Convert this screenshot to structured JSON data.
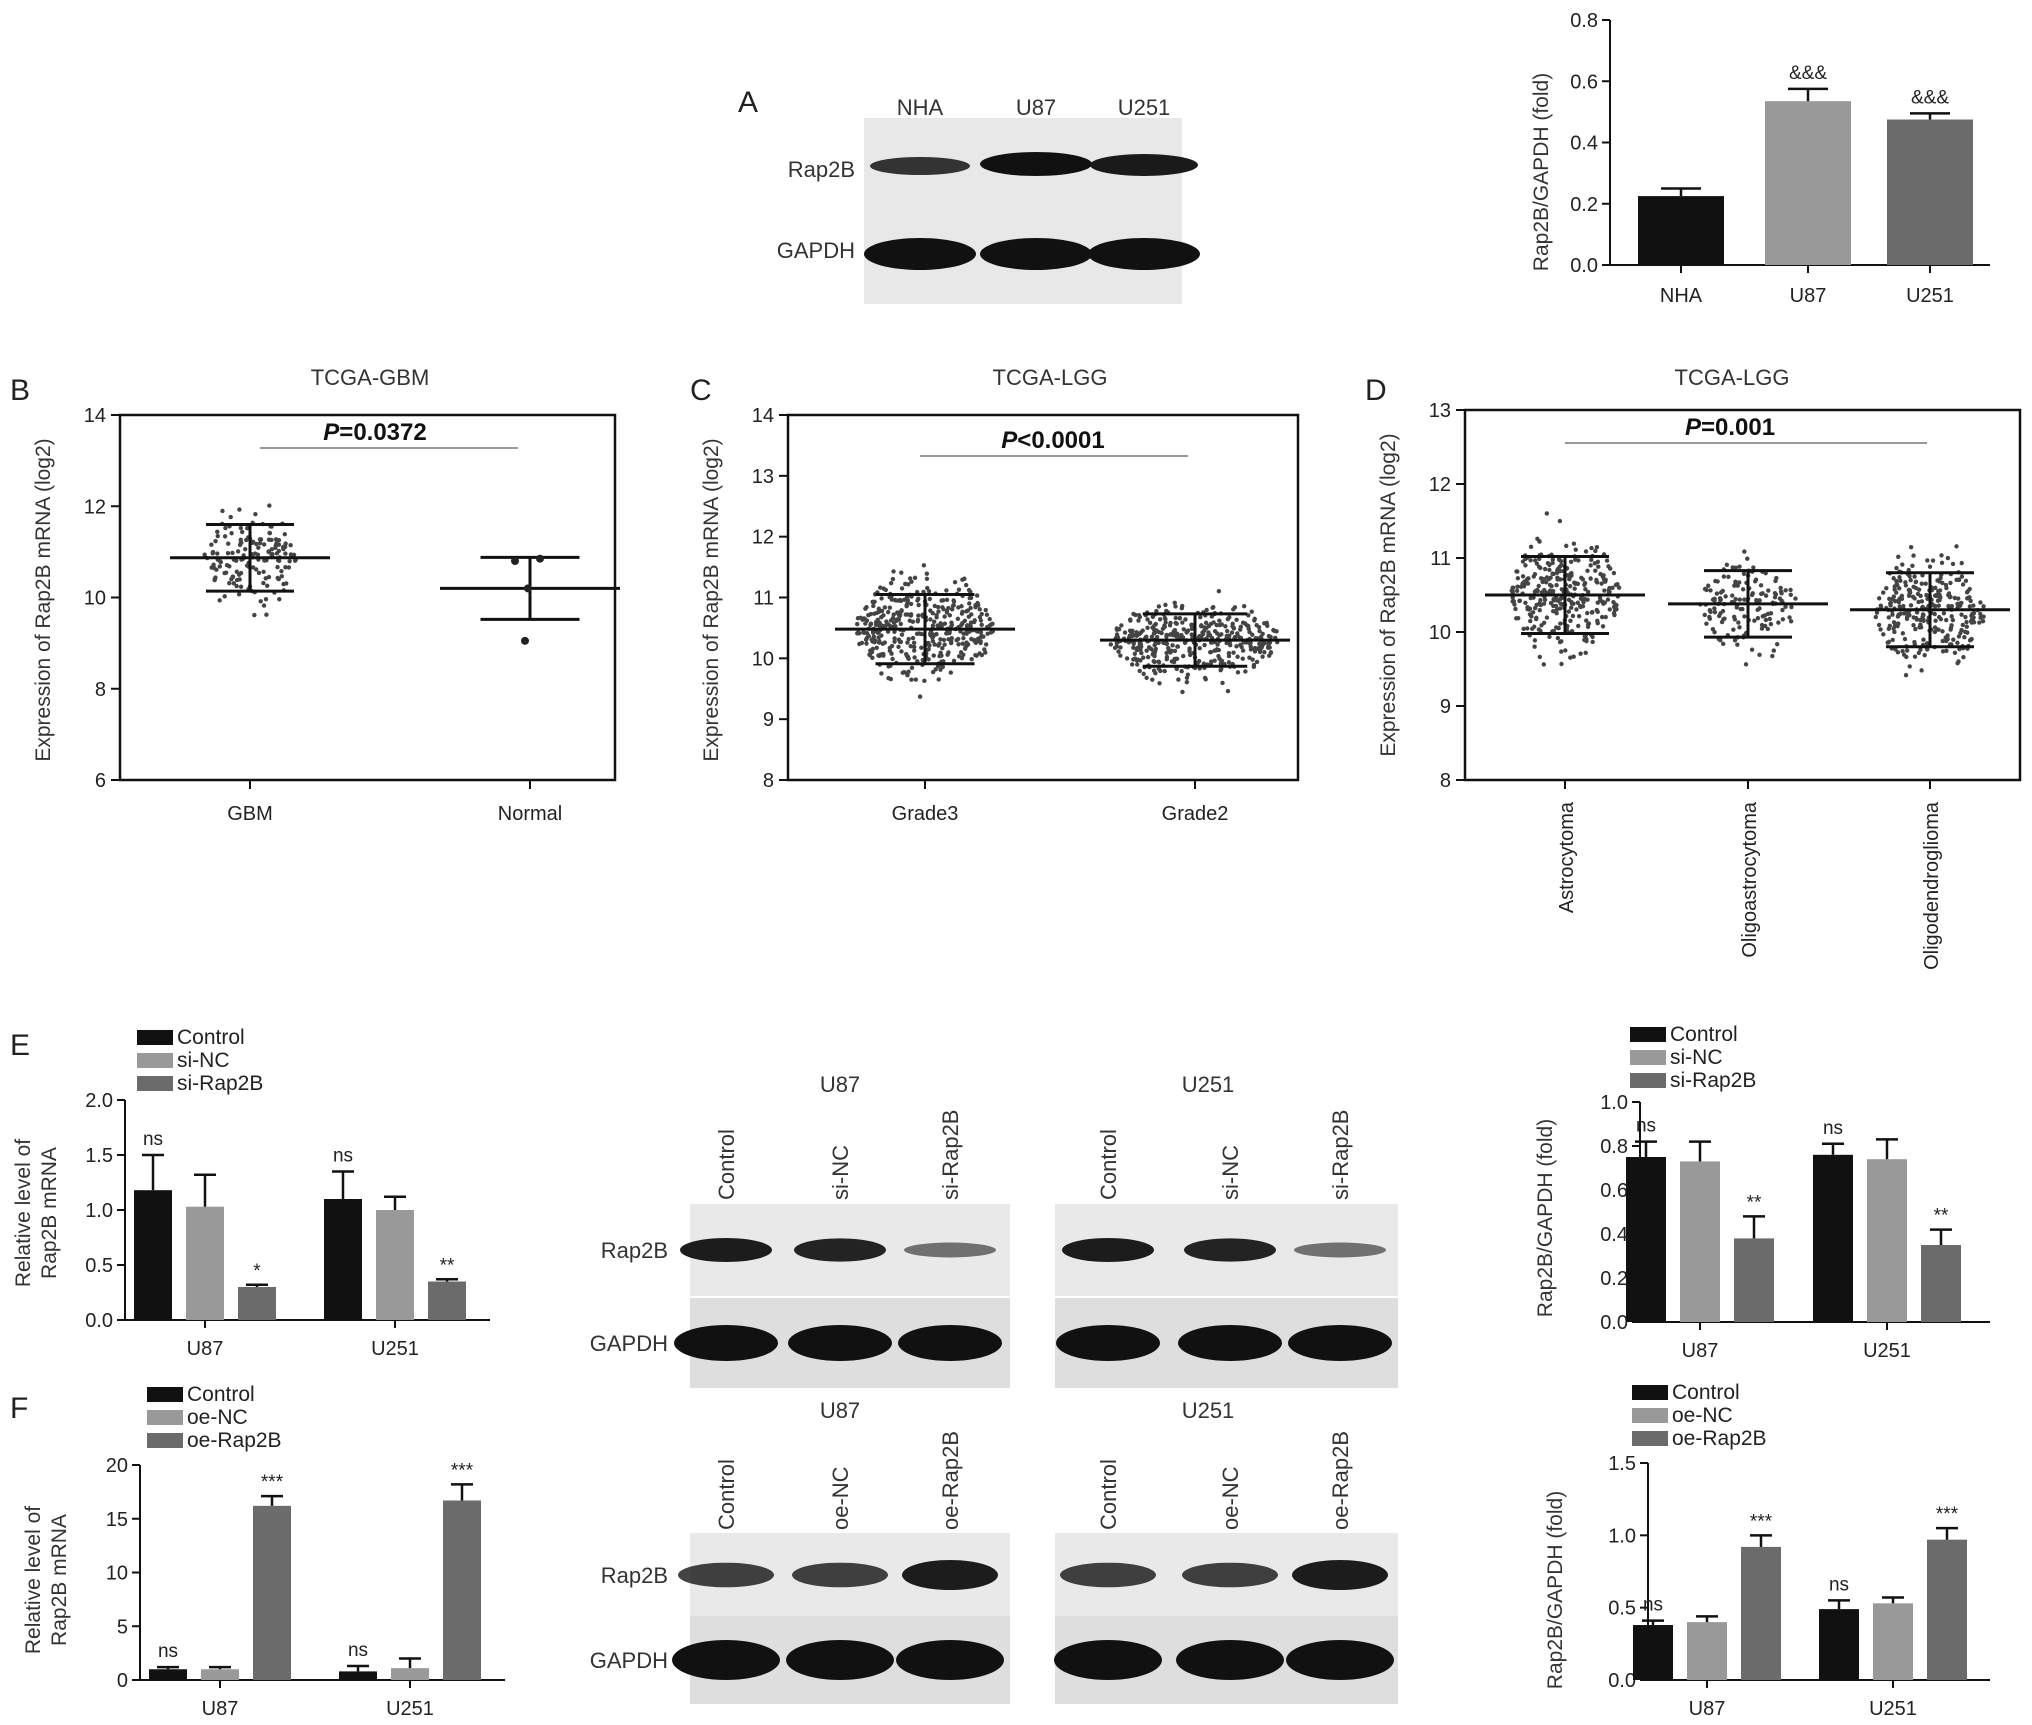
{
  "colors": {
    "control": "#111111",
    "nc": "#999999",
    "treat": "#6b6b6b",
    "band": "#1a1a1a",
    "blot_bg": "#e6e6e6"
  },
  "panelA": {
    "letter": "A",
    "blot": {
      "lanes": [
        "NHA",
        "U87",
        "U251"
      ],
      "rows": [
        "Rap2B",
        "GAPDH"
      ]
    },
    "chart": {
      "type": "bar",
      "ylabel": "Rap2B/GAPDH (fold)",
      "categories": [
        "NHA",
        "U87",
        "U251"
      ],
      "values": [
        0.225,
        0.535,
        0.475
      ],
      "errors": [
        0.025,
        0.04,
        0.02
      ],
      "sig": [
        "",
        "&&&",
        "&&&"
      ],
      "ylim": [
        0,
        0.8
      ],
      "yticks": [
        "0.0",
        "0.2",
        "0.4",
        "0.6",
        "0.8"
      ]
    }
  },
  "panelB": {
    "letter": "B",
    "title": "TCGA-GBM",
    "pval_label": "P",
    "pval_rest": "=0.0372",
    "ylabel": "Expression of Rap2B mRNA (log2)",
    "yticks": [
      "6",
      "8",
      "10",
      "12",
      "14"
    ],
    "categories": [
      "GBM",
      "Normal"
    ]
  },
  "panelC": {
    "letter": "C",
    "title": "TCGA-LGG",
    "pval_label": "P",
    "pval_rest": "<0.0001",
    "ylabel": "Expression of Rap2B mRNA (log2)",
    "yticks": [
      "8",
      "9",
      "10",
      "11",
      "12",
      "13",
      "14"
    ],
    "categories": [
      "Grade3",
      "Grade2"
    ]
  },
  "panelD": {
    "letter": "D",
    "title": "TCGA-LGG",
    "pval_label": "P",
    "pval_rest": "=0.001",
    "ylabel": "Expression of Rap2B mRNA (log2)",
    "yticks": [
      "8",
      "9",
      "10",
      "11",
      "12",
      "13"
    ],
    "categories": [
      "Astrocytoma",
      "Oligoastrocytoma",
      "Oligodendroglioma"
    ]
  },
  "panelE": {
    "letter": "E",
    "legend": [
      "Control",
      "si-NC",
      "si-Rap2B"
    ],
    "mrna": {
      "ylabel1": "Relative level of",
      "ylabel2": "Rap2B mRNA",
      "yticks": [
        "0.0",
        "0.5",
        "1.0",
        "1.5",
        "2.0"
      ],
      "groups": [
        "U87",
        "U251"
      ],
      "sig": [
        "ns",
        "*",
        "ns",
        "**"
      ]
    },
    "blot": {
      "lanes": [
        "Control",
        "si-NC",
        "si-Rap2B"
      ],
      "rows": [
        "Rap2B",
        "GAPDH"
      ],
      "cell1": "U87",
      "cell2": "U251"
    },
    "prot": {
      "ylabel": "Rap2B/GAPDH (fold)",
      "yticks": [
        "0.0",
        "0.2",
        "0.4",
        "0.6",
        "0.8",
        "1.0"
      ],
      "groups": [
        "U87",
        "U251"
      ],
      "sig": [
        "ns",
        "**",
        "ns",
        "**"
      ]
    }
  },
  "panelF": {
    "letter": "F",
    "legend": [
      "Control",
      "oe-NC",
      "oe-Rap2B"
    ],
    "mrna": {
      "ylabel1": "Relative level of",
      "ylabel2": "Rap2B mRNA",
      "yticks": [
        "0",
        "5",
        "10",
        "15",
        "20"
      ],
      "groups": [
        "U87",
        "U251"
      ],
      "sig": [
        "ns",
        "***",
        "ns",
        "***"
      ]
    },
    "blot": {
      "lanes": [
        "Control",
        "oe-NC",
        "oe-Rap2B"
      ],
      "rows": [
        "Rap2B",
        "GAPDH"
      ],
      "cell1": "U87",
      "cell2": "U251"
    },
    "prot": {
      "ylabel": "Rap2B/GAPDH (fold)",
      "yticks": [
        "0.0",
        "0.5",
        "1.0",
        "1.5"
      ],
      "groups": [
        "U87",
        "U251"
      ],
      "sig": [
        "ns",
        "***",
        "ns",
        "***"
      ]
    }
  },
  "chart_data": [
    {
      "type": "bar",
      "panel": "A",
      "ylabel": "Rap2B/GAPDH (fold)",
      "categories": [
        "NHA",
        "U87",
        "U251"
      ],
      "values": [
        0.225,
        0.535,
        0.475
      ],
      "errors": [
        0.025,
        0.04,
        0.02
      ],
      "ylim": [
        0,
        0.8
      ]
    },
    {
      "type": "scatter",
      "panel": "B",
      "title": "TCGA-GBM",
      "ylabel": "Expression of Rap2B mRNA (log2)",
      "categories": [
        "GBM",
        "Normal"
      ],
      "mean": [
        10.87,
        10.2
      ],
      "sd": [
        0.73,
        0.68
      ],
      "normal_points": [
        10.8,
        10.85,
        10.2,
        9.05
      ],
      "annotation": "P=0.0372",
      "ylim": [
        6,
        14
      ]
    },
    {
      "type": "scatter",
      "panel": "C",
      "title": "TCGA-LGG",
      "ylabel": "Expression of Rap2B mRNA (log2)",
      "categories": [
        "Grade3",
        "Grade2"
      ],
      "mean": [
        10.48,
        10.3
      ],
      "sd": [
        0.57,
        0.43
      ],
      "annotation": "P<0.0001",
      "ylim": [
        8,
        14
      ]
    },
    {
      "type": "scatter",
      "panel": "D",
      "title": "TCGA-LGG",
      "ylabel": "Expression of Rap2B mRNA (log2)",
      "categories": [
        "Astrocytoma",
        "Oligoastrocytoma",
        "Oligodendroglioma"
      ],
      "mean": [
        10.5,
        10.38,
        10.3
      ],
      "sd": [
        0.52,
        0.45,
        0.5
      ],
      "annotation": "P=0.001",
      "ylim": [
        8,
        13
      ]
    },
    {
      "type": "bar",
      "panel": "E-mRNA",
      "ylabel": "Relative level of Rap2B mRNA",
      "categories": [
        "U87",
        "U251"
      ],
      "series": [
        {
          "name": "Control",
          "values": [
            1.18,
            1.1
          ],
          "errors": [
            0.32,
            0.25
          ]
        },
        {
          "name": "si-NC",
          "values": [
            1.03,
            1.0
          ],
          "errors": [
            0.29,
            0.12
          ]
        },
        {
          "name": "si-Rap2B",
          "values": [
            0.3,
            0.35
          ],
          "errors": [
            0.02,
            0.02
          ]
        }
      ],
      "ylim": [
        0,
        2.0
      ]
    },
    {
      "type": "bar",
      "panel": "E-protein",
      "ylabel": "Rap2B/GAPDH (fold)",
      "categories": [
        "U87",
        "U251"
      ],
      "series": [
        {
          "name": "Control",
          "values": [
            0.75,
            0.76
          ],
          "errors": [
            0.07,
            0.05
          ]
        },
        {
          "name": "si-NC",
          "values": [
            0.73,
            0.74
          ],
          "errors": [
            0.09,
            0.09
          ]
        },
        {
          "name": "si-Rap2B",
          "values": [
            0.38,
            0.35
          ],
          "errors": [
            0.1,
            0.07
          ]
        }
      ],
      "ylim": [
        0,
        1.0
      ]
    },
    {
      "type": "bar",
      "panel": "F-mRNA",
      "ylabel": "Relative level of Rap2B mRNA",
      "categories": [
        "U87",
        "U251"
      ],
      "series": [
        {
          "name": "Control",
          "values": [
            1.0,
            0.8
          ],
          "errors": [
            0.2,
            0.5
          ]
        },
        {
          "name": "oe-NC",
          "values": [
            1.0,
            1.1
          ],
          "errors": [
            0.2,
            0.9
          ]
        },
        {
          "name": "oe-Rap2B",
          "values": [
            16.2,
            16.7
          ],
          "errors": [
            0.9,
            1.5
          ]
        }
      ],
      "ylim": [
        0,
        20
      ]
    },
    {
      "type": "bar",
      "panel": "F-protein",
      "ylabel": "Rap2B/GAPDH (fold)",
      "categories": [
        "U87",
        "U251"
      ],
      "series": [
        {
          "name": "Control",
          "values": [
            0.38,
            0.49
          ],
          "errors": [
            0.03,
            0.06
          ]
        },
        {
          "name": "oe-NC",
          "values": [
            0.4,
            0.53
          ],
          "errors": [
            0.04,
            0.04
          ]
        },
        {
          "name": "oe-Rap2B",
          "values": [
            0.92,
            0.97
          ],
          "errors": [
            0.08,
            0.08
          ]
        }
      ],
      "ylim": [
        0,
        1.5
      ]
    }
  ]
}
